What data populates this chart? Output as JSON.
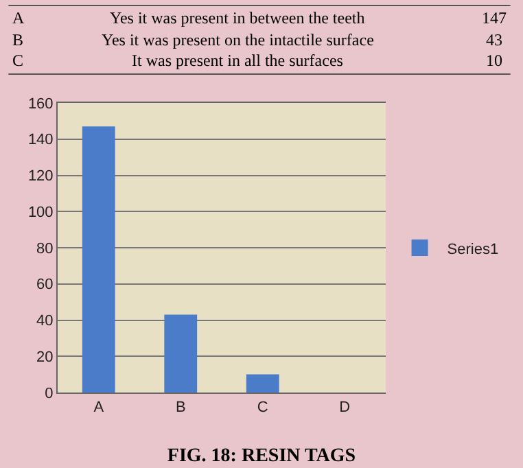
{
  "chart_data": {
    "type": "bar",
    "title": "FIG. 18: RESIN TAGS",
    "categories": [
      "A",
      "B",
      "C",
      "D"
    ],
    "series": [
      {
        "name": "Series1",
        "color": "#4a7cc9",
        "values": [
          147,
          43,
          10,
          null
        ]
      }
    ],
    "annotations": [
      "Yes it was present in between the teeth",
      "147",
      "Yes it was present on the intactile surface",
      "43",
      "It was present in all the surfaces",
      "10"
    ],
    "ylim": [
      0,
      160
    ],
    "yticks": [
      0,
      20,
      40,
      60,
      80,
      100,
      120,
      140,
      160
    ],
    "grid": "y",
    "legend": "right"
  }
}
